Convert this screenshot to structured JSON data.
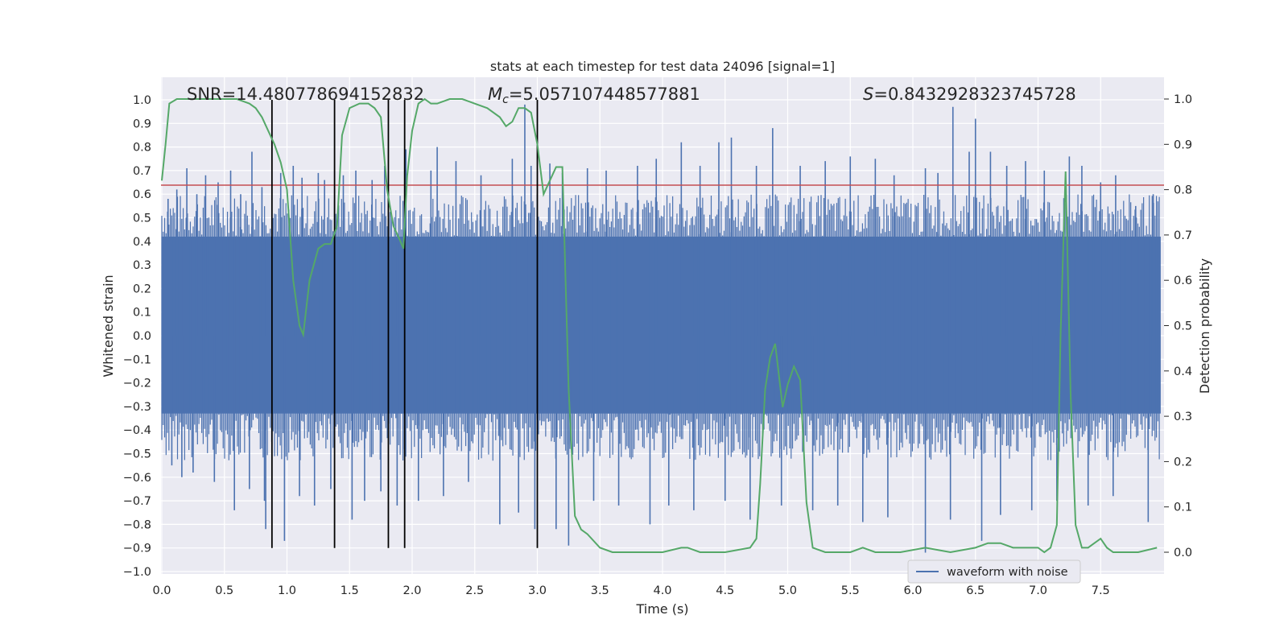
{
  "chart_data": {
    "type": "line",
    "title": "stats at each timestep for test data 24096 [signal=1]",
    "xlabel": "Time (s)",
    "ylabel": "Whitened strain",
    "y2label": "Detection probability",
    "xlim": [
      0.0,
      8.0
    ],
    "ylim": [
      -1.0,
      1.1
    ],
    "y2lim": [
      -0.05,
      1.05
    ],
    "x_ticks": [
      "0.0",
      "0.5",
      "1.0",
      "1.5",
      "2.0",
      "2.5",
      "3.0",
      "3.5",
      "4.0",
      "4.5",
      "5.0",
      "5.5",
      "6.0",
      "6.5",
      "7.0",
      "7.5"
    ],
    "y_ticks": [
      "1.0",
      "0.9",
      "0.8",
      "0.7",
      "0.6",
      "0.5",
      "0.4",
      "0.3",
      "0.2",
      "0.1",
      "0.0",
      "−0.1",
      "−0.2",
      "−0.3",
      "−0.4",
      "−0.5",
      "−0.6",
      "−0.7",
      "−0.8",
      "−0.9",
      "−1.0"
    ],
    "y2_ticks": [
      "1.0",
      "0.9",
      "0.8",
      "0.7",
      "0.6",
      "0.5",
      "0.4",
      "0.3",
      "0.2",
      "0.1",
      "0.0"
    ],
    "grid": true,
    "legend": {
      "placement": "bottom-right",
      "entries": [
        "waveform with noise"
      ]
    },
    "annotations": {
      "snr": "SNR=14.480778694152832",
      "mc_symbol": "M",
      "mc_sub": "c",
      "mc_value": "=5.057107448577881",
      "s_symbol": "S",
      "s_value": "=0.8432928323745728"
    },
    "threshold_line": {
      "y": 0.81,
      "color": "#c44e52"
    },
    "vertical_markers": [
      0.88,
      1.38,
      1.81,
      1.94,
      3.0
    ],
    "colors": {
      "waveform": "#4c72b0",
      "probability": "#55a868",
      "threshold": "#c44e52",
      "markers": "#000000",
      "background": "#eaeaf2",
      "grid": "#ffffff"
    },
    "series": [
      {
        "name": "waveform with noise",
        "kind": "noise-envelope",
        "band_upper": 0.42,
        "band_lower": -0.33,
        "spikes": [
          {
            "x": 0.05,
            "y": 0.58
          },
          {
            "x": 0.12,
            "y": 0.62
          },
          {
            "x": 0.2,
            "y": 0.71
          },
          {
            "x": 0.28,
            "y": 0.6
          },
          {
            "x": 0.35,
            "y": 0.68
          },
          {
            "x": 0.45,
            "y": 0.65
          },
          {
            "x": 0.55,
            "y": 0.7
          },
          {
            "x": 0.63,
            "y": 0.6
          },
          {
            "x": 0.72,
            "y": 0.78
          },
          {
            "x": 0.8,
            "y": 0.63
          },
          {
            "x": 0.95,
            "y": 0.69
          },
          {
            "x": 1.05,
            "y": 0.72
          },
          {
            "x": 1.12,
            "y": 0.67
          },
          {
            "x": 1.25,
            "y": 0.69
          },
          {
            "x": 1.3,
            "y": 0.66
          },
          {
            "x": 1.45,
            "y": 0.68
          },
          {
            "x": 1.55,
            "y": 0.7
          },
          {
            "x": 1.68,
            "y": 0.66
          },
          {
            "x": 1.78,
            "y": 0.72
          },
          {
            "x": 1.95,
            "y": 0.79
          },
          {
            "x": 2.15,
            "y": 0.7
          },
          {
            "x": 2.2,
            "y": 0.8
          },
          {
            "x": 2.35,
            "y": 0.74
          },
          {
            "x": 2.55,
            "y": 0.68
          },
          {
            "x": 2.8,
            "y": 0.75
          },
          {
            "x": 2.9,
            "y": 0.98
          },
          {
            "x": 2.95,
            "y": 0.72
          },
          {
            "x": 3.1,
            "y": 0.73
          },
          {
            "x": 3.2,
            "y": 0.69
          },
          {
            "x": 3.4,
            "y": 0.71
          },
          {
            "x": 3.55,
            "y": 0.7
          },
          {
            "x": 3.8,
            "y": 0.72
          },
          {
            "x": 3.95,
            "y": 0.75
          },
          {
            "x": 4.15,
            "y": 0.82
          },
          {
            "x": 4.3,
            "y": 0.72
          },
          {
            "x": 4.45,
            "y": 0.82
          },
          {
            "x": 4.55,
            "y": 0.84
          },
          {
            "x": 4.75,
            "y": 0.72
          },
          {
            "x": 4.88,
            "y": 0.88
          },
          {
            "x": 5.1,
            "y": 0.72
          },
          {
            "x": 5.3,
            "y": 0.74
          },
          {
            "x": 5.5,
            "y": 0.76
          },
          {
            "x": 5.7,
            "y": 0.75
          },
          {
            "x": 5.85,
            "y": 0.68
          },
          {
            "x": 6.1,
            "y": 0.71
          },
          {
            "x": 6.2,
            "y": 0.69
          },
          {
            "x": 6.32,
            "y": 0.97
          },
          {
            "x": 6.45,
            "y": 0.78
          },
          {
            "x": 6.5,
            "y": 0.92
          },
          {
            "x": 6.62,
            "y": 0.78
          },
          {
            "x": 6.75,
            "y": 0.72
          },
          {
            "x": 6.9,
            "y": 0.74
          },
          {
            "x": 7.05,
            "y": 0.7
          },
          {
            "x": 7.25,
            "y": 0.76
          },
          {
            "x": 7.35,
            "y": 0.72
          },
          {
            "x": 7.5,
            "y": 0.65
          },
          {
            "x": 7.62,
            "y": 0.68
          },
          {
            "x": 7.78,
            "y": 0.55
          },
          {
            "x": 7.92,
            "y": 0.6
          },
          {
            "x": 0.08,
            "y": -0.55
          },
          {
            "x": 0.16,
            "y": -0.6
          },
          {
            "x": 0.25,
            "y": -0.58
          },
          {
            "x": 0.42,
            "y": -0.62
          },
          {
            "x": 0.58,
            "y": -0.74
          },
          {
            "x": 0.7,
            "y": -0.65
          },
          {
            "x": 0.82,
            "y": -0.7
          },
          {
            "x": 0.83,
            "y": -0.82
          },
          {
            "x": 0.98,
            "y": -0.87
          },
          {
            "x": 1.1,
            "y": -0.68
          },
          {
            "x": 1.22,
            "y": -0.72
          },
          {
            "x": 1.35,
            "y": -0.65
          },
          {
            "x": 1.52,
            "y": -0.78
          },
          {
            "x": 1.62,
            "y": -0.7
          },
          {
            "x": 1.75,
            "y": -0.66
          },
          {
            "x": 1.88,
            "y": -0.72
          },
          {
            "x": 2.05,
            "y": -0.7
          },
          {
            "x": 2.25,
            "y": -0.68
          },
          {
            "x": 2.45,
            "y": -0.62
          },
          {
            "x": 2.7,
            "y": -0.8
          },
          {
            "x": 2.85,
            "y": -0.75
          },
          {
            "x": 2.98,
            "y": -0.82
          },
          {
            "x": 3.15,
            "y": -0.82
          },
          {
            "x": 3.25,
            "y": -0.89
          },
          {
            "x": 3.45,
            "y": -0.7
          },
          {
            "x": 3.65,
            "y": -0.72
          },
          {
            "x": 3.9,
            "y": -0.8
          },
          {
            "x": 4.05,
            "y": -0.72
          },
          {
            "x": 4.25,
            "y": -0.74
          },
          {
            "x": 4.5,
            "y": -0.7
          },
          {
            "x": 4.7,
            "y": -0.78
          },
          {
            "x": 4.95,
            "y": -0.72
          },
          {
            "x": 5.2,
            "y": -0.74
          },
          {
            "x": 5.4,
            "y": -0.72
          },
          {
            "x": 5.6,
            "y": -0.79
          },
          {
            "x": 5.8,
            "y": -0.77
          },
          {
            "x": 6.1,
            "y": -0.92
          },
          {
            "x": 6.3,
            "y": -0.78
          },
          {
            "x": 6.55,
            "y": -0.87
          },
          {
            "x": 6.7,
            "y": -0.76
          },
          {
            "x": 6.95,
            "y": -0.74
          },
          {
            "x": 7.15,
            "y": -0.7
          },
          {
            "x": 7.4,
            "y": -0.72
          },
          {
            "x": 7.6,
            "y": -0.68
          },
          {
            "x": 7.88,
            "y": -0.79
          }
        ]
      },
      {
        "name": "",
        "axis": "right",
        "x": [
          0.0,
          0.03,
          0.06,
          0.12,
          0.2,
          0.3,
          0.5,
          0.6,
          0.7,
          0.75,
          0.8,
          0.85,
          0.9,
          0.95,
          1.0,
          1.05,
          1.1,
          1.13,
          1.18,
          1.25,
          1.3,
          1.35,
          1.4,
          1.44,
          1.5,
          1.58,
          1.65,
          1.7,
          1.75,
          1.8,
          1.85,
          1.9,
          1.93,
          1.96,
          2.0,
          2.05,
          2.1,
          2.15,
          2.2,
          2.3,
          2.4,
          2.5,
          2.6,
          2.7,
          2.75,
          2.8,
          2.85,
          2.9,
          2.95,
          3.0,
          3.05,
          3.1,
          3.15,
          3.2,
          3.25,
          3.3,
          3.35,
          3.4,
          3.5,
          3.6,
          3.8,
          4.0,
          4.15,
          4.2,
          4.3,
          4.5,
          4.7,
          4.75,
          4.78,
          4.82,
          4.86,
          4.9,
          4.93,
          4.96,
          5.0,
          5.05,
          5.1,
          5.15,
          5.2,
          5.3,
          5.5,
          5.6,
          5.7,
          5.9,
          6.1,
          6.3,
          6.5,
          6.6,
          6.7,
          6.8,
          6.9,
          7.0,
          7.05,
          7.1,
          7.15,
          7.18,
          7.22,
          7.26,
          7.3,
          7.35,
          7.4,
          7.45,
          7.5,
          7.55,
          7.6,
          7.7,
          7.8,
          7.95
        ],
        "y": [
          0.82,
          0.9,
          0.99,
          1.0,
          1.0,
          1.0,
          1.0,
          1.0,
          0.99,
          0.98,
          0.96,
          0.93,
          0.9,
          0.86,
          0.8,
          0.6,
          0.5,
          0.48,
          0.6,
          0.67,
          0.68,
          0.68,
          0.72,
          0.92,
          0.98,
          0.99,
          0.99,
          0.98,
          0.96,
          0.8,
          0.72,
          0.69,
          0.67,
          0.83,
          0.93,
          0.99,
          1.0,
          0.99,
          0.99,
          1.0,
          1.0,
          0.99,
          0.98,
          0.96,
          0.94,
          0.95,
          0.98,
          0.98,
          0.97,
          0.9,
          0.79,
          0.82,
          0.85,
          0.85,
          0.36,
          0.08,
          0.05,
          0.04,
          0.01,
          0.0,
          0.0,
          0.0,
          0.01,
          0.01,
          0.0,
          0.0,
          0.01,
          0.03,
          0.15,
          0.36,
          0.43,
          0.46,
          0.39,
          0.32,
          0.37,
          0.41,
          0.38,
          0.11,
          0.01,
          0.0,
          0.0,
          0.01,
          0.0,
          0.0,
          0.01,
          0.0,
          0.01,
          0.02,
          0.02,
          0.01,
          0.01,
          0.01,
          0.0,
          0.01,
          0.06,
          0.48,
          0.84,
          0.35,
          0.06,
          0.01,
          0.01,
          0.02,
          0.03,
          0.01,
          0.0,
          0.0,
          0.0,
          0.01
        ]
      }
    ]
  }
}
